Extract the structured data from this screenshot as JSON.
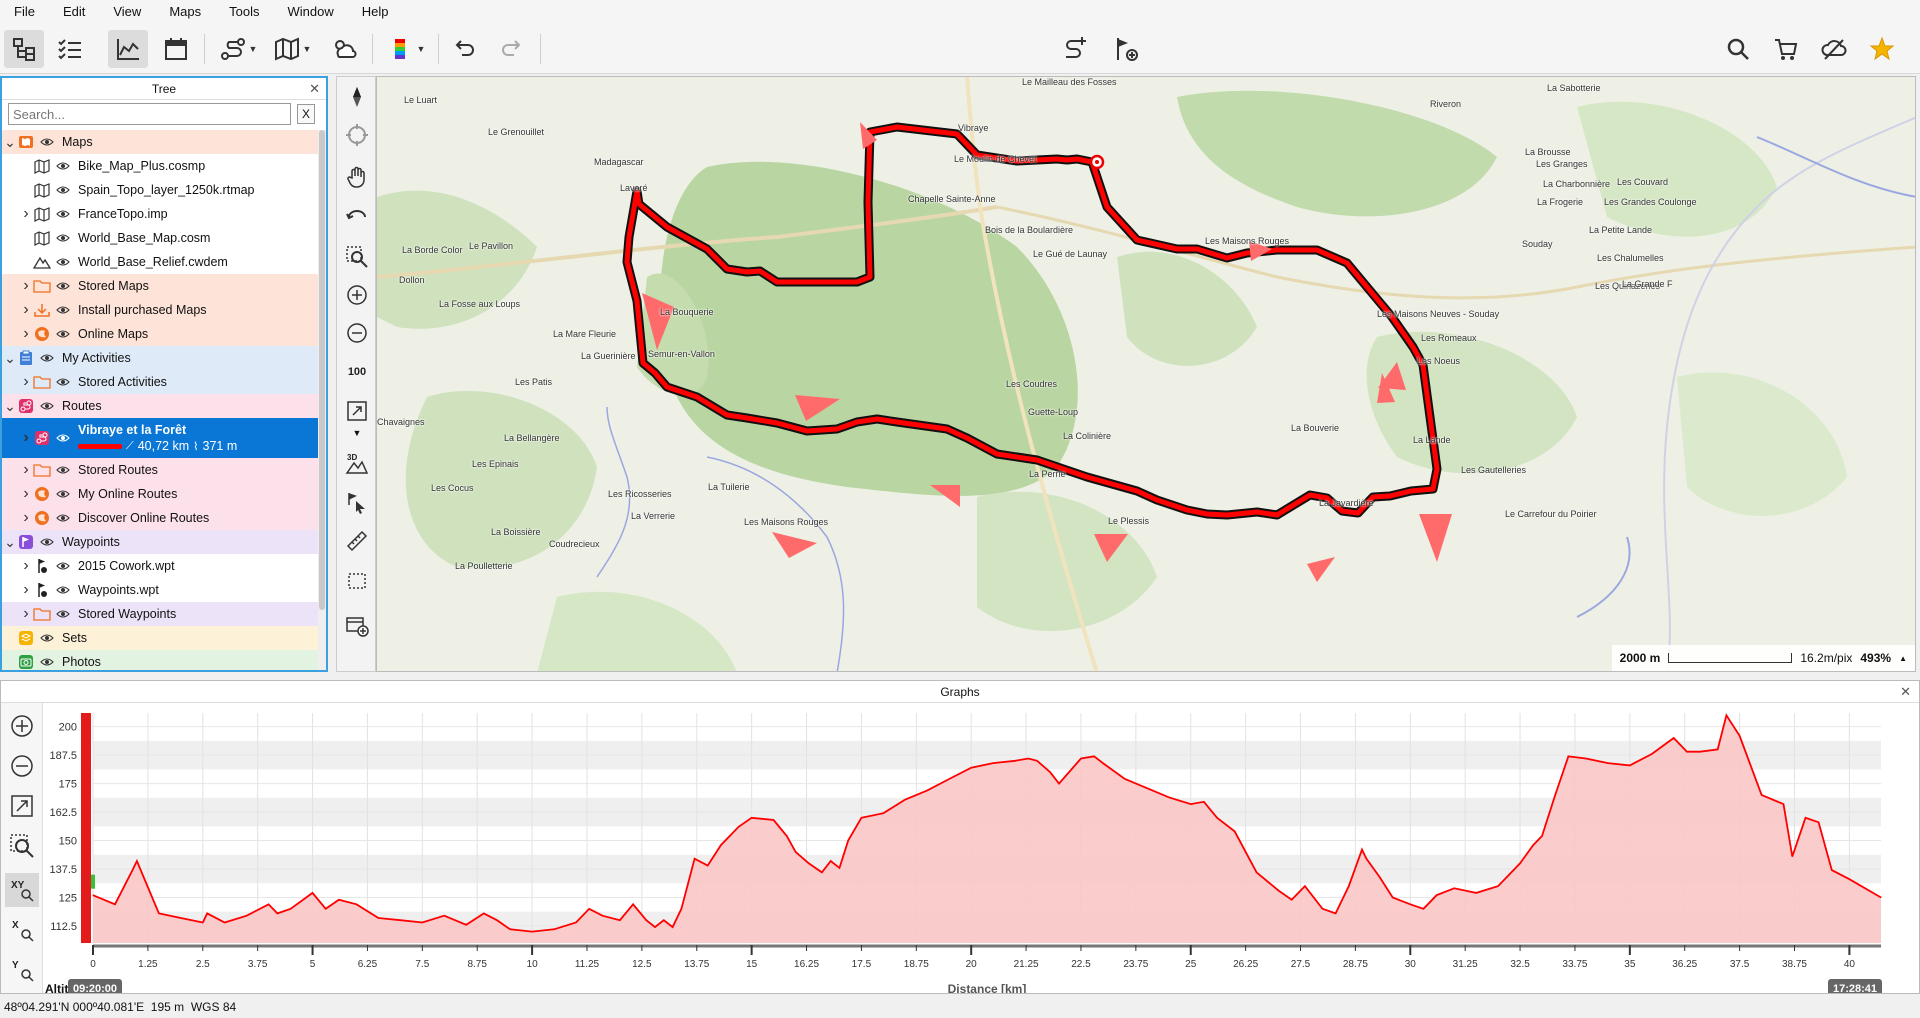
{
  "menu": [
    "File",
    "Edit",
    "View",
    "Maps",
    "Tools",
    "Window",
    "Help"
  ],
  "tree": {
    "title": "Tree",
    "close": "✕",
    "search_placeholder": "Search...",
    "search_clear": "X",
    "items": [
      {
        "label": "Maps",
        "icon": "map-folder-icon",
        "level": 0,
        "bg": "bg-orange",
        "chev": "v"
      },
      {
        "label": "Bike_Map_Plus.cosmp",
        "icon": "map-icon",
        "level": 1,
        "bg": "bg-white",
        "chev": ""
      },
      {
        "label": "Spain_Topo_layer_1250k.rtmap",
        "icon": "map-icon",
        "level": 1,
        "bg": "bg-white",
        "chev": ""
      },
      {
        "label": "FranceTopo.imp",
        "icon": "map-icon",
        "level": 1,
        "bg": "bg-white",
        "chev": ">"
      },
      {
        "label": "World_Base_Map.cosm",
        "icon": "map-icon",
        "level": 1,
        "bg": "bg-white",
        "chev": ""
      },
      {
        "label": "World_Base_Relief.cwdem",
        "icon": "relief-icon",
        "level": 1,
        "bg": "bg-white",
        "chev": ""
      },
      {
        "label": "Stored Maps",
        "icon": "folder-icon",
        "level": 1,
        "bg": "bg-orange",
        "chev": ">"
      },
      {
        "label": "Install purchased Maps",
        "icon": "download-icon",
        "level": 1,
        "bg": "bg-orange",
        "chev": ">"
      },
      {
        "label": "Online Maps",
        "icon": "globe-icon",
        "level": 1,
        "bg": "bg-orange",
        "chev": ">"
      },
      {
        "label": "My Activities",
        "icon": "clipboard-icon",
        "level": 0,
        "bg": "bg-blue",
        "chev": "v"
      },
      {
        "label": "Stored Activities",
        "icon": "folder-icon",
        "level": 1,
        "bg": "bg-blue",
        "chev": ">"
      },
      {
        "label": "Routes",
        "icon": "route-icon",
        "level": 0,
        "bg": "bg-pink",
        "chev": "v"
      },
      {
        "label": "Vibraye et la Forêt",
        "icon": "route-icon",
        "level": 1,
        "bg": "selected",
        "chev": ">",
        "sub": "40,72 km",
        "sub2": "371 m"
      },
      {
        "label": "Stored Routes",
        "icon": "folder-icon",
        "level": 1,
        "bg": "bg-pink",
        "chev": ">"
      },
      {
        "label": "My Online Routes",
        "icon": "globe-icon",
        "level": 1,
        "bg": "bg-pink",
        "chev": ">"
      },
      {
        "label": "Discover Online Routes",
        "icon": "globe-icon",
        "level": 1,
        "bg": "bg-pink",
        "chev": ">"
      },
      {
        "label": "Waypoints",
        "icon": "waypoint-icon",
        "level": 0,
        "bg": "bg-purple",
        "chev": "v"
      },
      {
        "label": "2015 Cowork.wpt",
        "icon": "waypoint-file-icon",
        "level": 1,
        "bg": "bg-white",
        "chev": ">"
      },
      {
        "label": "Waypoints.wpt",
        "icon": "waypoint-file-icon",
        "level": 1,
        "bg": "bg-white",
        "chev": ">"
      },
      {
        "label": "Stored Waypoints",
        "icon": "folder-icon",
        "level": 1,
        "bg": "bg-purple",
        "chev": ">"
      },
      {
        "label": "Sets",
        "icon": "sets-icon",
        "level": 0,
        "bg": "bg-yellow",
        "chev": ""
      },
      {
        "label": "Photos",
        "icon": "camera-icon",
        "level": 0,
        "bg": "bg-green",
        "chev": ""
      }
    ]
  },
  "map": {
    "labels": [
      "Le Grenouillet",
      "Le Luart",
      "Madagascar",
      "Lavaré",
      "Vibraye",
      "Le Moulin de Chevet",
      "Chapelle Sainte-Anne",
      "Bois de la Boulardière",
      "Le Gué de Launay",
      "Les Maisons Rouges",
      "La Brousse",
      "Les Granges",
      "La Charbonnière",
      "La Frogerie",
      "La Petite Lande",
      "Les Chalumelles",
      "Les Quinazeries",
      "La Borde Color",
      "Le Pavillon",
      "Dollon",
      "La Fosse aux Loups",
      "La Bouquerie",
      "La Mare Fleurie",
      "La Guerinière",
      "Semur-en-Vallon",
      "Les Patis",
      "Les Coudres",
      "Guette-Loup",
      "La Colinière",
      "La Perrie",
      "La Bouverie",
      "Les Noeus",
      "Les Romeaux",
      "Les Maisons Neuves - Souday",
      "La Lande",
      "Les Gautelleries",
      "La Bellangère",
      "Les Epinais",
      "Les Cocus",
      "Les Ricosseries",
      "La Tuilerie",
      "Les Maisons Rouges",
      "La Verrerie",
      "La Boissière",
      "Coudrecieux",
      "Le Plessis",
      "La Javardière",
      "Le Carrefour du Poirier",
      "Riveron",
      "La Sabotterie",
      "Souday",
      "Les Grandes Coulonge",
      "Les Couvard",
      "La Grande F",
      "Le Mailleau des Fosses",
      "La Poulletterie",
      "Chavaignes"
    ],
    "scale_distance": "2000 m",
    "resolution": "16.2m/pix",
    "zoom": "493%"
  },
  "graphs": {
    "title": "Graphs",
    "close": "✕",
    "start_time": "09:20:00",
    "end_time": "17:28:41",
    "tool_xy": "XY",
    "tool_x": "X",
    "tool_y": "Y",
    "y_axis_label": "Altitu"
  },
  "chart_data": {
    "type": "area",
    "title": "",
    "xlabel": "Distance [km]",
    "ylabel": "Altitude",
    "xlim": [
      0,
      40.72
    ],
    "ylim": [
      105,
      206
    ],
    "x_ticks": [
      0,
      1.25,
      2.5,
      3.75,
      5,
      6.25,
      7.5,
      8.75,
      10,
      11.25,
      12.5,
      13.75,
      15,
      16.25,
      17.5,
      18.75,
      20,
      21.25,
      22.5,
      23.75,
      25,
      26.25,
      27.5,
      28.75,
      30,
      31.25,
      32.5,
      33.75,
      35,
      36.25,
      37.5,
      38.75,
      40
    ],
    "y_ticks": [
      112.5,
      125,
      137.5,
      150,
      162.5,
      175,
      187.5,
      200
    ],
    "grid": true,
    "color": "#ff0000",
    "series": [
      {
        "x": [
          0,
          0.5,
          0.9,
          1.0,
          1.5,
          2.0,
          2.5,
          2.6,
          3.0,
          3.5,
          4.0,
          4.2,
          4.5,
          5.0,
          5.3,
          5.6,
          6.0,
          6.5,
          7.0,
          7.5,
          8.0,
          8.5,
          8.9,
          9.2,
          9.5,
          10.0,
          10.5,
          11.0,
          11.3,
          11.6,
          12.0,
          12.3,
          12.6,
          12.8,
          13.0,
          13.2,
          13.4,
          13.7,
          14.0,
          14.3,
          14.7,
          15.0,
          15.5,
          15.8,
          16.0,
          16.3,
          16.6,
          16.8,
          17.0,
          17.2,
          17.5,
          18.0,
          18.5,
          19.0,
          19.5,
          20.0,
          20.5,
          21.0,
          21.3,
          21.5,
          21.8,
          22.0,
          22.5,
          22.8,
          23.0,
          23.5,
          24.0,
          24.5,
          25.0,
          25.3,
          25.6,
          26.0,
          26.5,
          27.0,
          27.3,
          27.6,
          28.0,
          28.3,
          28.6,
          28.9,
          29.0,
          29.3,
          29.6,
          30.0,
          30.3,
          30.6,
          31.0,
          31.5,
          32.0,
          32.5,
          32.8,
          33.0,
          33.3,
          33.6,
          34.0,
          34.5,
          35.0,
          35.5,
          36.0,
          36.3,
          36.6,
          37.0,
          37.2,
          37.5,
          38.0,
          38.5,
          38.7,
          39.0,
          39.3,
          39.6,
          40.0,
          40.72
        ],
        "y": [
          126,
          122,
          137,
          141,
          118,
          116,
          114,
          118,
          114,
          117,
          122,
          118,
          120,
          127,
          120,
          124,
          122,
          116,
          115,
          114,
          117,
          113,
          118,
          115,
          111,
          110,
          111,
          114,
          120,
          117,
          115,
          122,
          115,
          112,
          115,
          112,
          120,
          142,
          139,
          148,
          156,
          160,
          159,
          152,
          145,
          140,
          136,
          141,
          138,
          150,
          160,
          162,
          168,
          172,
          177,
          182,
          184,
          185,
          186,
          185,
          180,
          175,
          186,
          187,
          184,
          177,
          173,
          169,
          166,
          167,
          160,
          154,
          136,
          128,
          124,
          130,
          120,
          118,
          130,
          146,
          142,
          134,
          125,
          122,
          120,
          126,
          129,
          127,
          130,
          140,
          148,
          152,
          170,
          187,
          186,
          184,
          183,
          188,
          195,
          189,
          189,
          190,
          205,
          196,
          170,
          166,
          143,
          160,
          158,
          137,
          133,
          125
        ]
      }
    ]
  }
}
